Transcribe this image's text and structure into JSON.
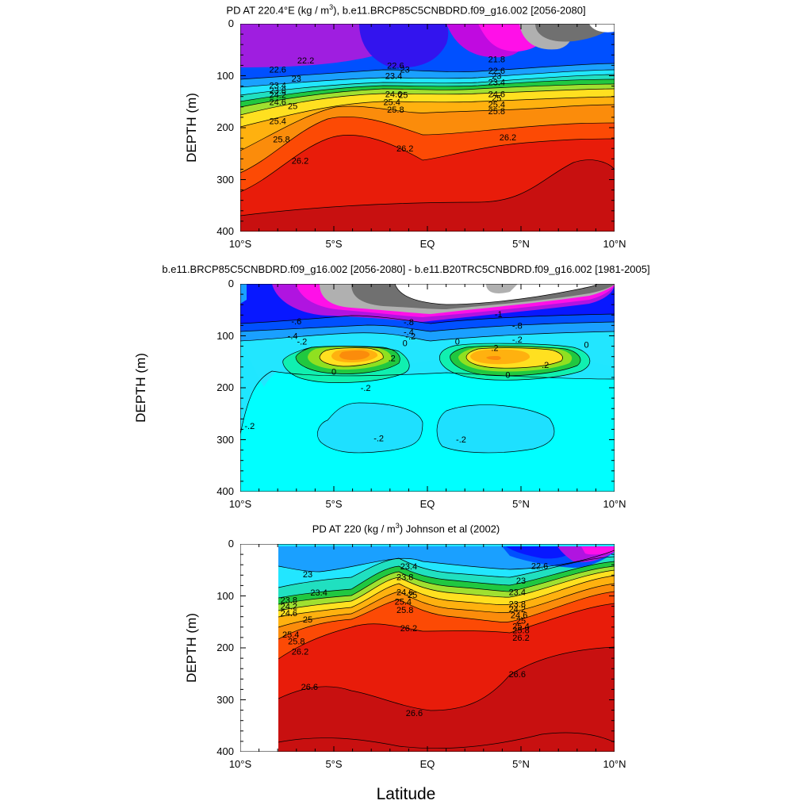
{
  "chart_data": [
    {
      "type": "contour",
      "title_main": "PD AT 220.4°E (kg / m",
      "title_sup": "3",
      "title_rest": "), b.e11.BRCP85C5CNBDRD.f09_g16.002 [2056-2080]",
      "ylabel": "DEPTH (m)",
      "xlim": [
        -10,
        10
      ],
      "ylim": [
        400,
        0
      ],
      "xticks": [
        "10°S",
        "5°S",
        "EQ",
        "5°N",
        "10°N"
      ],
      "yticks": [
        "0",
        "100",
        "200",
        "300",
        "400"
      ],
      "contour_labels": [
        {
          "text": "22.2",
          "x": -6.5,
          "y": 70
        },
        {
          "text": "22.6",
          "x": -8.0,
          "y": 88
        },
        {
          "text": "23",
          "x": -7.0,
          "y": 105
        },
        {
          "text": "23.4",
          "x": -8.0,
          "y": 118
        },
        {
          "text": "23.8",
          "x": -8.0,
          "y": 128
        },
        {
          "text": "24.2",
          "x": -8.0,
          "y": 137
        },
        {
          "text": "24.6",
          "x": -8.0,
          "y": 150
        },
        {
          "text": "25",
          "x": -7.2,
          "y": 158
        },
        {
          "text": "25.4",
          "x": -8.0,
          "y": 187
        },
        {
          "text": "25.8",
          "x": -7.8,
          "y": 222
        },
        {
          "text": "26.2",
          "x": -6.8,
          "y": 263
        },
        {
          "text": "22.6",
          "x": -1.7,
          "y": 80
        },
        {
          "text": "23",
          "x": -1.2,
          "y": 88
        },
        {
          "text": "23.4",
          "x": -1.8,
          "y": 100
        },
        {
          "text": "24.6",
          "x": -1.8,
          "y": 135
        },
        {
          "text": "25",
          "x": -1.3,
          "y": 137
        },
        {
          "text": "25.4",
          "x": -1.9,
          "y": 150
        },
        {
          "text": "25.8",
          "x": -1.7,
          "y": 165
        },
        {
          "text": "26.2",
          "x": -1.2,
          "y": 240
        },
        {
          "text": "21.8",
          "x": 3.7,
          "y": 68
        },
        {
          "text": "22.6",
          "x": 3.7,
          "y": 90
        },
        {
          "text": "23",
          "x": 3.7,
          "y": 100
        },
        {
          "text": "23.4",
          "x": 3.7,
          "y": 112
        },
        {
          "text": "24.6",
          "x": 3.7,
          "y": 135
        },
        {
          "text": "25",
          "x": 3.7,
          "y": 143
        },
        {
          "text": "25.4",
          "x": 3.7,
          "y": 155
        },
        {
          "text": "25.8",
          "x": 3.7,
          "y": 168
        },
        {
          "text": "26.2",
          "x": 4.3,
          "y": 218
        }
      ]
    },
    {
      "type": "contour",
      "title_main": "b.e11.BRCP85C5CNBDRD.f09_g16.002 [2056-2080] - b.e11.B20TRC5CNBDRD.f09_g16.002 [1981-2005]",
      "ylabel": "DEPTH (m)",
      "xlim": [
        -10,
        10
      ],
      "ylim": [
        400,
        0
      ],
      "xticks": [
        "10°S",
        "5°S",
        "EQ",
        "5°N",
        "10°N"
      ],
      "yticks": [
        "0",
        "100",
        "200",
        "300",
        "400"
      ],
      "contour_labels": [
        {
          "text": "-1",
          "x": 3.8,
          "y": 58
        },
        {
          "text": "-.6",
          "x": -7.0,
          "y": 72
        },
        {
          "text": "-.8",
          "x": -1.0,
          "y": 73
        },
        {
          "text": "-.8",
          "x": 4.8,
          "y": 80
        },
        {
          "text": "-.4",
          "x": -7.2,
          "y": 100
        },
        {
          "text": "-.4",
          "x": -1.0,
          "y": 92
        },
        {
          "text": "-.2",
          "x": -6.7,
          "y": 111
        },
        {
          "text": "-.2",
          "x": -0.9,
          "y": 101
        },
        {
          "text": "-.2",
          "x": 4.8,
          "y": 107
        },
        {
          "text": "0",
          "x": -1.2,
          "y": 114
        },
        {
          "text": "0",
          "x": 1.6,
          "y": 111
        },
        {
          "text": "0",
          "x": 8.5,
          "y": 117
        },
        {
          "text": ".2",
          "x": -1.9,
          "y": 143
        },
        {
          "text": ".2",
          "x": 3.6,
          "y": 123
        },
        {
          "text": ".2",
          "x": 6.3,
          "y": 156
        },
        {
          "text": "0",
          "x": -5.0,
          "y": 169
        },
        {
          "text": "0",
          "x": 4.3,
          "y": 175
        },
        {
          "text": "-.2",
          "x": -3.3,
          "y": 200
        },
        {
          "text": "-.2",
          "x": -9.5,
          "y": 273
        },
        {
          "text": "-.2",
          "x": -2.6,
          "y": 297
        },
        {
          "text": "-.2",
          "x": 1.8,
          "y": 299
        }
      ]
    },
    {
      "type": "contour",
      "title_main": "PD AT 220 (kg / m",
      "title_sup": "3",
      "title_rest": ") Johnson et al (2002)",
      "ylabel": "DEPTH (m)",
      "xlim": [
        -10,
        10
      ],
      "ylim": [
        400,
        0
      ],
      "xticks": [
        "10°S",
        "5°S",
        "EQ",
        "5°N",
        "10°N"
      ],
      "yticks": [
        "0",
        "100",
        "200",
        "300",
        "400"
      ],
      "contour_labels": [
        {
          "text": "23",
          "x": -6.4,
          "y": 58
        },
        {
          "text": "23.4",
          "x": -5.8,
          "y": 93
        },
        {
          "text": "23.8",
          "x": -7.4,
          "y": 108
        },
        {
          "text": "24.2",
          "x": -7.4,
          "y": 120
        },
        {
          "text": "24.6",
          "x": -7.4,
          "y": 133
        },
        {
          "text": "25",
          "x": -6.4,
          "y": 145
        },
        {
          "text": "25.4",
          "x": -7.3,
          "y": 174
        },
        {
          "text": "25.8",
          "x": -7.0,
          "y": 187
        },
        {
          "text": "26.2",
          "x": -6.8,
          "y": 207
        },
        {
          "text": "26.6",
          "x": -6.3,
          "y": 275
        },
        {
          "text": "23.4",
          "x": -1.0,
          "y": 43
        },
        {
          "text": "23.8",
          "x": -1.2,
          "y": 63
        },
        {
          "text": "24.6",
          "x": -1.2,
          "y": 92
        },
        {
          "text": "25",
          "x": -0.8,
          "y": 98
        },
        {
          "text": "25.4",
          "x": -1.3,
          "y": 111
        },
        {
          "text": "25.8",
          "x": -1.2,
          "y": 127
        },
        {
          "text": "26.2",
          "x": -1.0,
          "y": 162
        },
        {
          "text": "26.6",
          "x": -0.7,
          "y": 325
        },
        {
          "text": "22.6",
          "x": 6.0,
          "y": 42
        },
        {
          "text": "23",
          "x": 5.0,
          "y": 70
        },
        {
          "text": "23.4",
          "x": 4.8,
          "y": 92
        },
        {
          "text": "23.8",
          "x": 4.8,
          "y": 115
        },
        {
          "text": "24.2",
          "x": 4.8,
          "y": 125
        },
        {
          "text": "24.6",
          "x": 4.9,
          "y": 137
        },
        {
          "text": "25",
          "x": 5.0,
          "y": 147
        },
        {
          "text": "25.4",
          "x": 5.0,
          "y": 158
        },
        {
          "text": "25.8",
          "x": 5.0,
          "y": 166
        },
        {
          "text": "26.2",
          "x": 5.0,
          "y": 180
        },
        {
          "text": "26.6",
          "x": 4.8,
          "y": 250
        }
      ]
    }
  ],
  "xlabel": "Latitude"
}
